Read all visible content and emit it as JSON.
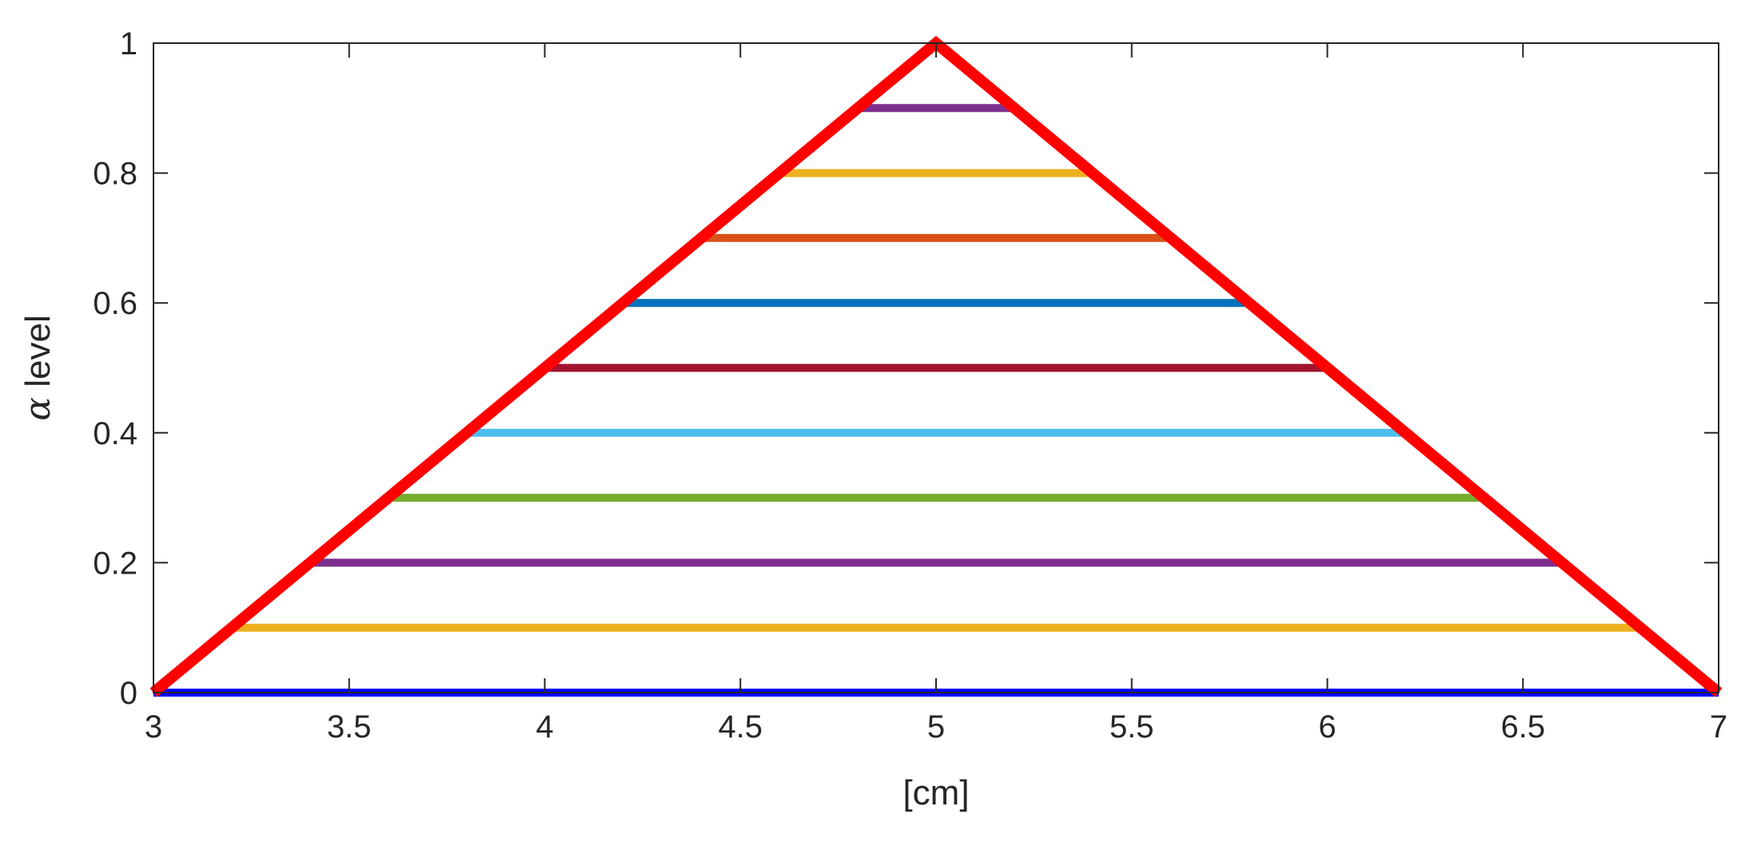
{
  "chart_data": {
    "type": "line",
    "title": "",
    "xlabel": "[cm]",
    "ylabel": {
      "symbol": "α",
      "text": " level"
    },
    "xlim": [
      3,
      7
    ],
    "ylim": [
      0,
      1
    ],
    "xticks": [
      3,
      3.5,
      4,
      4.5,
      5,
      5.5,
      6,
      6.5,
      7
    ],
    "xtick_labels": [
      "3",
      "3.5",
      "4",
      "4.5",
      "5",
      "5.5",
      "6",
      "6.5",
      "7"
    ],
    "yticks": [
      0,
      0.2,
      0.4,
      0.6,
      0.8,
      1
    ],
    "ytick_labels": [
      "0",
      "0.2",
      "0.4",
      "0.6",
      "0.8",
      "1"
    ],
    "grid": false,
    "legend": "none",
    "triangle": {
      "color": "#ff0000",
      "points": [
        [
          3,
          0
        ],
        [
          5,
          1
        ],
        [
          7,
          0
        ]
      ]
    },
    "alpha_cuts": [
      {
        "alpha": 0.0,
        "x": [
          3.0,
          7.0
        ],
        "color": "#0000ff"
      },
      {
        "alpha": 0.1,
        "x": [
          3.2,
          6.8
        ],
        "color": "#edb120"
      },
      {
        "alpha": 0.2,
        "x": [
          3.4,
          6.6
        ],
        "color": "#7e2f8e"
      },
      {
        "alpha": 0.3,
        "x": [
          3.6,
          6.4
        ],
        "color": "#77ac30"
      },
      {
        "alpha": 0.4,
        "x": [
          3.8,
          6.2
        ],
        "color": "#4dbeee"
      },
      {
        "alpha": 0.5,
        "x": [
          4.0,
          6.0
        ],
        "color": "#a2142f"
      },
      {
        "alpha": 0.6,
        "x": [
          4.2,
          5.8
        ],
        "color": "#0072bd"
      },
      {
        "alpha": 0.7,
        "x": [
          4.4,
          5.6
        ],
        "color": "#d95319"
      },
      {
        "alpha": 0.8,
        "x": [
          4.6,
          5.4
        ],
        "color": "#edb120"
      },
      {
        "alpha": 0.9,
        "x": [
          4.8,
          5.2
        ],
        "color": "#7e2f8e"
      }
    ]
  }
}
